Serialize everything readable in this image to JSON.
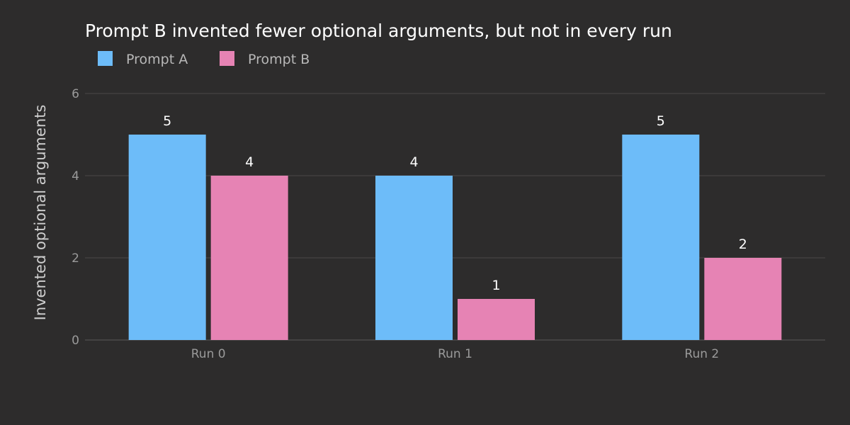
{
  "chart_data": {
    "type": "bar",
    "title": "Prompt B invented fewer optional arguments, but not in every run",
    "xlabel": "",
    "ylabel": "Invented optional arguments",
    "categories": [
      "Run 0",
      "Run 1",
      "Run 2"
    ],
    "series": [
      {
        "name": "Prompt A",
        "color": "#6dbcf9",
        "values": [
          5,
          4,
          5
        ]
      },
      {
        "name": "Prompt B",
        "color": "#e683b4",
        "values": [
          4,
          1,
          2
        ]
      }
    ],
    "ylim": [
      0,
      6
    ],
    "yticks": [
      0,
      2,
      4,
      6
    ],
    "grid": true,
    "legend": "top-left",
    "data_labels": true
  },
  "colors": {
    "background": "#2d2c2c"
  }
}
